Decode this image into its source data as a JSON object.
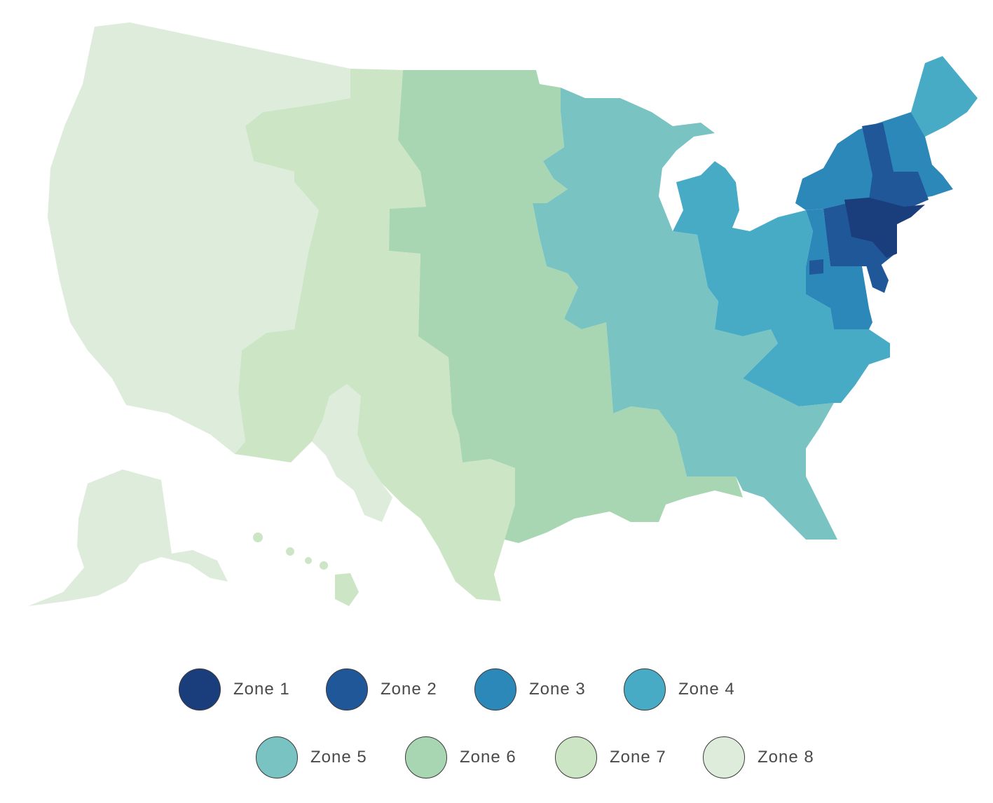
{
  "map": {
    "type": "choropleth",
    "region": "United States",
    "zones": [
      {
        "id": 1,
        "label": "Zone 1",
        "color": "#1a3d7c"
      },
      {
        "id": 2,
        "label": "Zone 2",
        "color": "#1f5799"
      },
      {
        "id": 3,
        "label": "Zone 3",
        "color": "#2b88b8"
      },
      {
        "id": 4,
        "label": "Zone 4",
        "color": "#47abc6"
      },
      {
        "id": 5,
        "label": "Zone 5",
        "color": "#79c3c2"
      },
      {
        "id": 6,
        "label": "Zone 6",
        "color": "#a8d6b2"
      },
      {
        "id": 7,
        "label": "Zone 7",
        "color": "#cce6c5"
      },
      {
        "id": 8,
        "label": "Zone 8",
        "color": "#deecdb"
      }
    ]
  }
}
